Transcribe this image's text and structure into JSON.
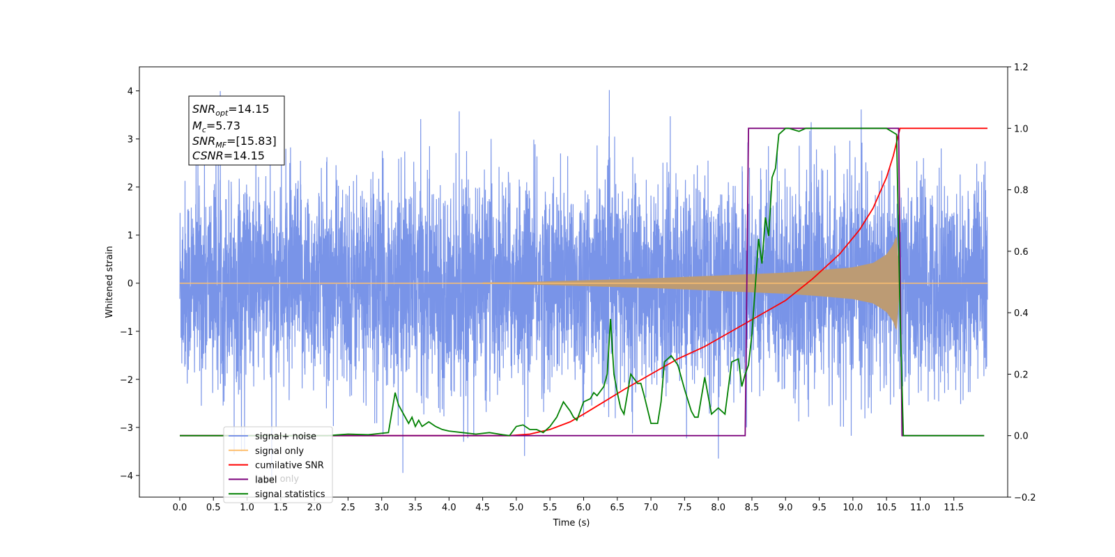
{
  "chart_data": {
    "type": "line",
    "xlabel": "Time (s)",
    "ylabel": "Whitened strain",
    "xlim": [
      -0.6,
      12.3
    ],
    "ylim": [
      -4.45,
      4.5
    ],
    "y2lim": [
      -0.2,
      1.2
    ],
    "x_ticks": [
      "0.0",
      "0.5",
      "1.0",
      "1.5",
      "2.0",
      "2.5",
      "3.0",
      "3.5",
      "4.0",
      "4.5",
      "5.0",
      "5.5",
      "6.0",
      "6.5",
      "7.0",
      "7.5",
      "8.0",
      "8.5",
      "9.0",
      "9.5",
      "10.0",
      "10.5",
      "11.0",
      "11.5"
    ],
    "y_ticks": [
      "4",
      "3",
      "2",
      "1",
      "0",
      "−1",
      "−2",
      "−3",
      "−4"
    ],
    "y2_ticks": [
      "1.2",
      "1.0",
      "0.8",
      "0.6",
      "0.4",
      "0.2",
      "0.0",
      "−0.2"
    ],
    "annotation": {
      "snr_opt": {
        "main": "SNR",
        "sub": "opt",
        "value": "=14.15"
      },
      "mc": {
        "main": "M",
        "sub": "c",
        "value": "=5.73"
      },
      "snr_mf": {
        "main": "SNR",
        "sub": "MF",
        "value": "=[15.83]"
      },
      "csnr": {
        "main": "CSNR",
        "value": "=14.15"
      }
    },
    "legend": {
      "position": "lower left",
      "entries": [
        "signal+ noise",
        "signal only",
        "cumilative SNR",
        "label",
        "signal statistics"
      ],
      "hidden_entry": "label only"
    },
    "series": [
      {
        "name": "signal+ noise",
        "axis": "left",
        "color": "#7994e8",
        "description_range": [
          -4.05,
          4.1
        ],
        "x_range": [
          0,
          12
        ]
      },
      {
        "name": "signal only",
        "axis": "left",
        "color": "#fdbf6f",
        "x": [
          0,
          5.0,
          6.0,
          7.0,
          8.0,
          9.0,
          9.5,
          10.0,
          10.3,
          10.5,
          10.6,
          10.65,
          10.7
        ],
        "envelope": [
          0,
          0.02,
          0.06,
          0.1,
          0.16,
          0.22,
          0.27,
          0.33,
          0.42,
          0.6,
          0.8,
          1.02,
          0
        ]
      },
      {
        "name": "cumilative SNR",
        "axis": "right",
        "color": "#ff0000",
        "x": [
          0,
          4.9,
          5.2,
          5.5,
          5.8,
          6.0,
          6.3,
          6.6,
          7.0,
          7.4,
          7.8,
          8.2,
          8.6,
          9.0,
          9.4,
          9.8,
          10.1,
          10.3,
          10.5,
          10.6,
          10.7,
          11.0,
          12.0
        ],
        "y": [
          0,
          0,
          0.005,
          0.02,
          0.045,
          0.07,
          0.11,
          0.15,
          0.2,
          0.25,
          0.29,
          0.34,
          0.39,
          0.44,
          0.51,
          0.59,
          0.67,
          0.74,
          0.84,
          0.91,
          1.0,
          1.0,
          1.0
        ]
      },
      {
        "name": "label",
        "axis": "right",
        "color": "#7b007b",
        "x": [
          0,
          8.4,
          8.45,
          10.68,
          10.73,
          11.95
        ],
        "y": [
          0,
          0,
          1,
          1,
          0,
          0
        ]
      },
      {
        "name": "signal statistics",
        "axis": "right",
        "color": "#008000",
        "x": [
          0,
          2.2,
          2.5,
          2.8,
          3.1,
          3.2,
          3.25,
          3.3,
          3.4,
          3.45,
          3.5,
          3.55,
          3.6,
          3.7,
          3.8,
          3.9,
          4.0,
          4.2,
          4.4,
          4.6,
          4.8,
          4.9,
          5.0,
          5.1,
          5.2,
          5.3,
          5.4,
          5.5,
          5.6,
          5.7,
          5.8,
          5.85,
          5.9,
          6.0,
          6.1,
          6.15,
          6.2,
          6.3,
          6.35,
          6.4,
          6.45,
          6.5,
          6.55,
          6.6,
          6.7,
          6.8,
          6.85,
          6.9,
          7.0,
          7.1,
          7.15,
          7.2,
          7.3,
          7.4,
          7.5,
          7.6,
          7.65,
          7.7,
          7.8,
          7.9,
          8.0,
          8.1,
          8.2,
          8.3,
          8.35,
          8.4,
          8.45,
          8.5,
          8.6,
          8.65,
          8.7,
          8.75,
          8.8,
          8.85,
          8.9,
          9.0,
          9.05,
          9.2,
          9.3,
          9.5,
          10.0,
          10.5,
          10.65,
          10.7,
          10.75,
          11.0,
          11.95
        ],
        "y": [
          0,
          0,
          0.005,
          0.003,
          0.01,
          0.14,
          0.1,
          0.08,
          0.04,
          0.06,
          0.03,
          0.05,
          0.03,
          0.045,
          0.03,
          0.02,
          0.015,
          0.01,
          0.005,
          0.01,
          0.003,
          0.0,
          0.03,
          0.035,
          0.02,
          0.02,
          0.01,
          0.03,
          0.06,
          0.11,
          0.08,
          0.06,
          0.05,
          0.11,
          0.12,
          0.14,
          0.13,
          0.16,
          0.2,
          0.38,
          0.2,
          0.14,
          0.09,
          0.07,
          0.2,
          0.17,
          0.17,
          0.13,
          0.04,
          0.04,
          0.11,
          0.24,
          0.26,
          0.23,
          0.15,
          0.08,
          0.06,
          0.06,
          0.19,
          0.07,
          0.09,
          0.07,
          0.24,
          0.25,
          0.16,
          0.2,
          0.23,
          0.33,
          0.64,
          0.56,
          0.71,
          0.65,
          0.84,
          0.87,
          0.98,
          1.0,
          1.0,
          0.99,
          1.0,
          1.0,
          1.0,
          1.0,
          0.98,
          0.4,
          0.0,
          0.0,
          0.0
        ]
      }
    ],
    "grid": false
  },
  "colors": {
    "noise": "#7994e8",
    "signal": "#fdbf6f",
    "signal_fill": "#bc9b74",
    "snr": "#ff0000",
    "label": "#7b007b",
    "stats": "#008000"
  }
}
